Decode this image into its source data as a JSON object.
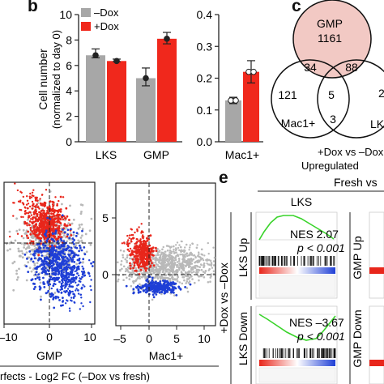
{
  "panels": {
    "b": {
      "letter": "b"
    },
    "c": {
      "letter": "c"
    },
    "e": {
      "letter": "e"
    }
  },
  "colors": {
    "minus_dox": "#a7a7a7",
    "plus_dox": "#f0281c",
    "gmp_fill": "#f2c9c4",
    "scatter_up": "#e8261b",
    "scatter_down": "#1f3fd6",
    "scatter_gray": "#b9b9b9",
    "gsea_curve": "#39d32a"
  },
  "chart_data": [
    {
      "type": "bar",
      "panel": "b-left",
      "categories": [
        "LKS",
        "GMP"
      ],
      "series": [
        {
          "name": "–Dox",
          "values": [
            6.8,
            5.0
          ],
          "points": [
            [
              6.6,
              7.3
            ],
            [
              4.4,
              5.8
            ]
          ]
        },
        {
          "name": "+Dox",
          "values": [
            6.35,
            8.1
          ],
          "points": [
            [
              6.3,
              6.5
            ],
            [
              7.7,
              8.6
            ]
          ]
        }
      ],
      "yticks": [
        "0",
        "2",
        "4",
        "6",
        "8",
        "10"
      ],
      "ylim": [
        0,
        10
      ],
      "ylabel": "Cell number",
      "ylabel2": "(normalized to day 0)"
    },
    {
      "type": "bar",
      "panel": "b-right",
      "categories": [
        "Mac1+"
      ],
      "series": [
        {
          "name": "–Dox",
          "values": [
            0.13
          ]
        },
        {
          "name": "+Dox",
          "values": [
            0.22
          ]
        }
      ],
      "yticks": [
        "0.0",
        "0.1",
        "0.2",
        "0.3",
        "0.4"
      ],
      "ylim": [
        0,
        0.4
      ]
    },
    {
      "type": "scatter",
      "panel": "d-left",
      "xticks": [
        "–10",
        "0",
        "10"
      ],
      "xlabel": "GMP",
      "xlim": [
        -10,
        10
      ]
    },
    {
      "type": "scatter",
      "panel": "d-right",
      "xticks": [
        "–5",
        "0",
        "5",
        "10"
      ],
      "yticks": [
        "0",
        "5"
      ],
      "xlabel": "Mac1+",
      "xlim": [
        -7,
        12
      ],
      "ylim": [
        -4,
        6
      ]
    }
  ],
  "venn": {
    "gmp_label": "GMP",
    "gmp_count": "1161",
    "mac_label": "Mac1+",
    "mac_count": "121",
    "lks_label": "LK",
    "lks_count": "2",
    "gmp_mac": "34",
    "gmp_lks": "88",
    "mac_lks": "3",
    "all": "5",
    "caption1": "+Dox vs –Dox",
    "caption2": "Upregulated"
  },
  "scatter_caption": "rfects - Log2 FC (–Dox vs fresh)",
  "gsea": {
    "header": "Fresh vs",
    "column": "LKS",
    "side_label": "+Dox vs –Dox",
    "row1": "LKS Up",
    "row2": "LKS Down",
    "row1_right": "GMP Up",
    "row2_right": "GMP Down",
    "nes1": "NES 2.07",
    "p1": "p < 0.001",
    "nes2": "NES –3.67",
    "p2": "p < 0.001"
  }
}
